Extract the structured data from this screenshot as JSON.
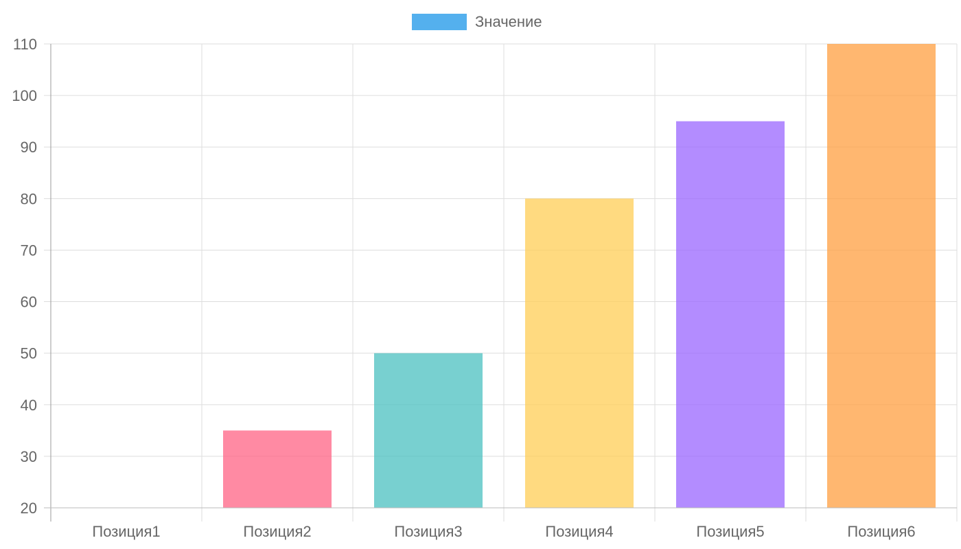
{
  "chart_data": {
    "type": "bar",
    "categories": [
      "Позиция1",
      "Позиция2",
      "Позиция3",
      "Позиция4",
      "Позиция5",
      "Позиция6"
    ],
    "series": [
      {
        "name": "Значение",
        "values": [
          20,
          35,
          50,
          80,
          95,
          110
        ]
      }
    ],
    "bar_colors": [
      "#36a2eb",
      "#ff6384",
      "#4bc0c0",
      "#ffcd56",
      "#9966ff",
      "#ff9f40"
    ],
    "legend_color": "#36a2eb",
    "ylim": [
      20,
      110
    ],
    "yticks": [
      20,
      30,
      40,
      50,
      60,
      70,
      80,
      90,
      100,
      110
    ],
    "grid": true,
    "legend_position": "top"
  }
}
